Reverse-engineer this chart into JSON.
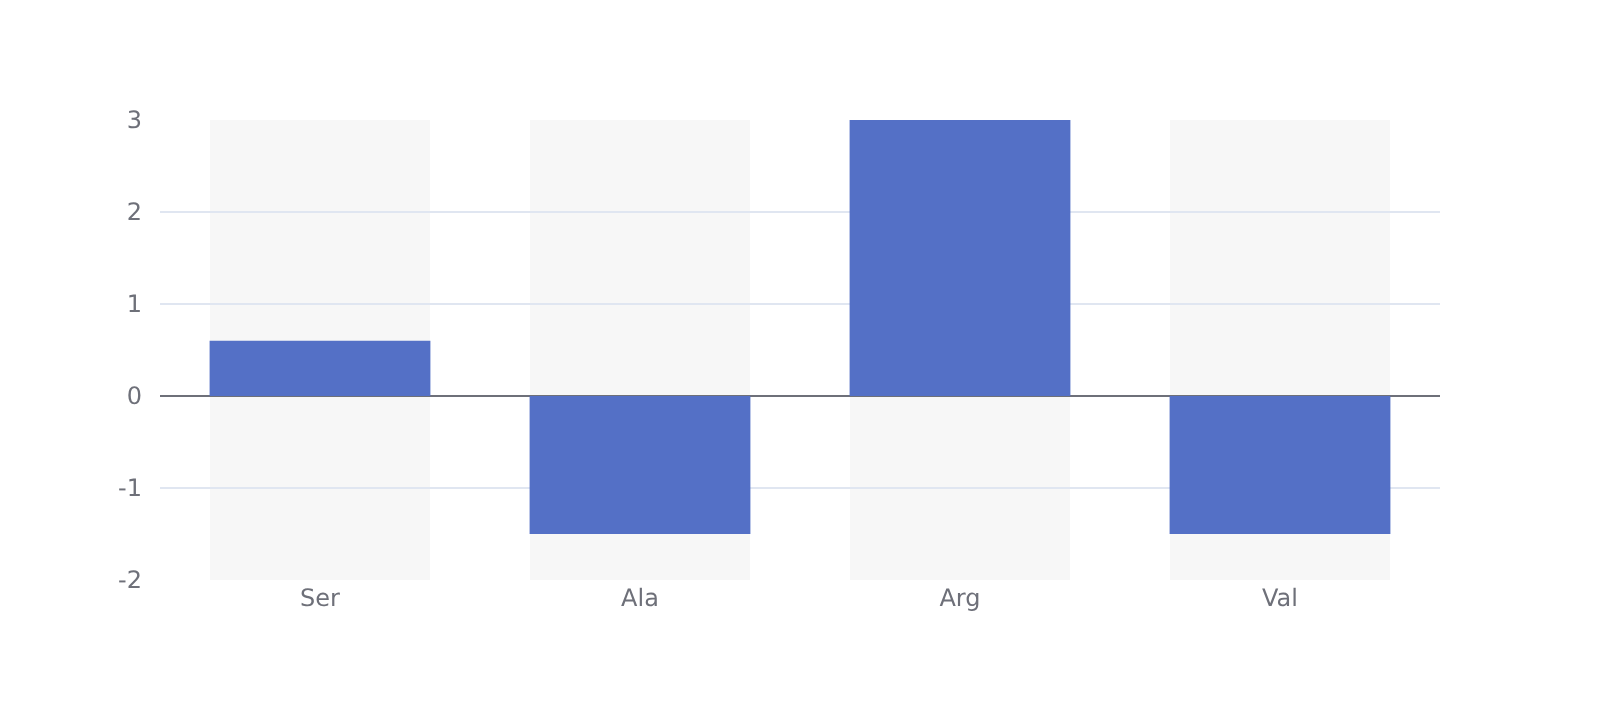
{
  "chart_data": {
    "type": "bar",
    "categories": [
      "Ser",
      "Ala",
      "Arg",
      "Val"
    ],
    "values": [
      0.6,
      -1.5,
      3,
      -1.5
    ],
    "color": "#5470c6",
    "ylim": [
      -2,
      3
    ],
    "yticks": [
      -2,
      -1,
      0,
      1,
      2,
      3
    ],
    "grid": "y"
  }
}
